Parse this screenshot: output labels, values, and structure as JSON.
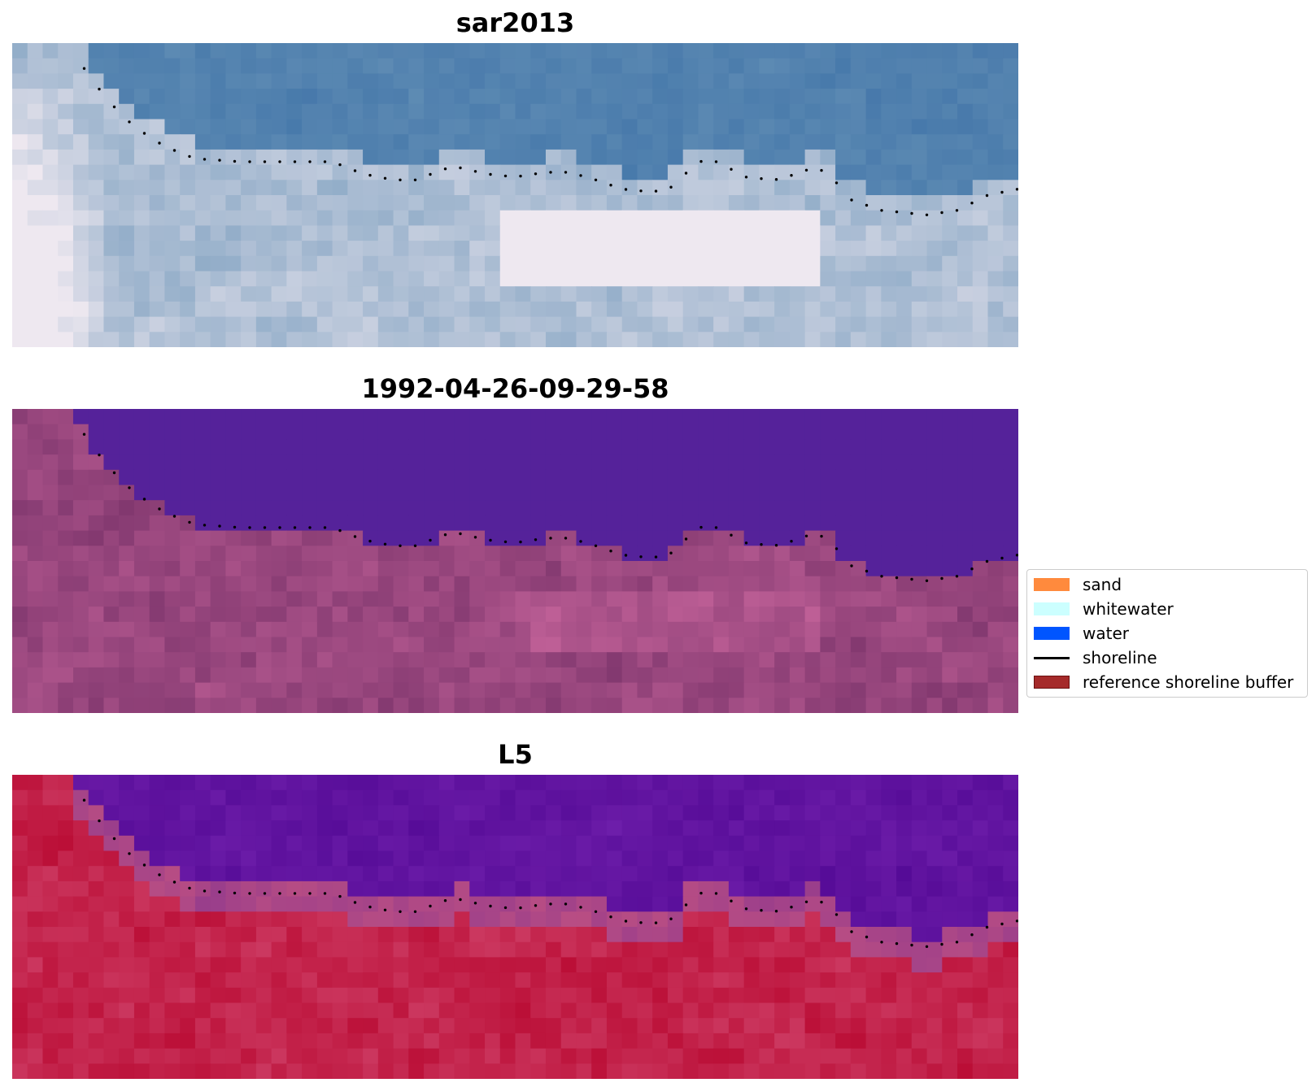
{
  "panels": [
    {
      "title": "sar2013",
      "palette": "rgb"
    },
    {
      "title": "1992-04-26-09-29-58",
      "palette": "classified"
    },
    {
      "title": "L5",
      "palette": "index"
    }
  ],
  "legend": {
    "items": [
      {
        "label": "sand",
        "color": "#ff8a3d",
        "kind": "patch"
      },
      {
        "label": "whitewater",
        "color": "#ccffff",
        "kind": "patch"
      },
      {
        "label": "water",
        "color": "#0055ff",
        "kind": "patch"
      },
      {
        "label": "shoreline",
        "color": "#000000",
        "kind": "line"
      },
      {
        "label": "reference shoreline buffer",
        "color": "#a52a2a",
        "kind": "patch"
      }
    ]
  }
}
